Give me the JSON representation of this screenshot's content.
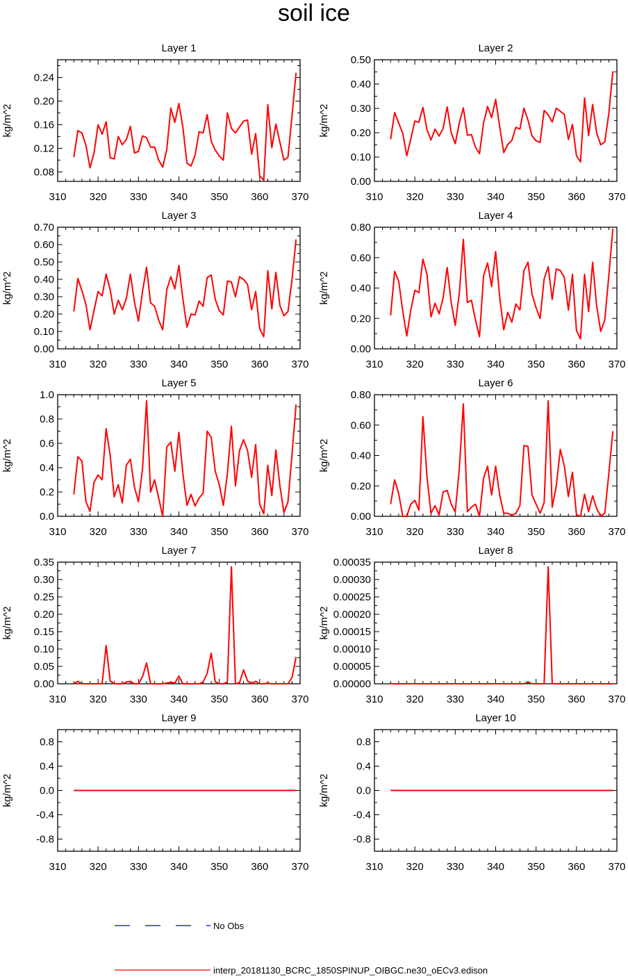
{
  "figure": {
    "title": "soil ice",
    "legend": [
      {
        "label": "No Obs",
        "color": "#0000ff",
        "style": "dashed"
      },
      {
        "label": "interp_20181130_BCRC_1850SPINUP_OIBGC.ne30_oECv3.edison",
        "color": "#ff0000",
        "style": "solid"
      }
    ]
  },
  "chart_data": [
    {
      "type": "line",
      "title": "Layer 1",
      "ylabel": "kg/m^2",
      "xlim": [
        310,
        370
      ],
      "ylim": [
        0.064,
        0.27
      ],
      "xticks": [
        310,
        320,
        330,
        340,
        350,
        360,
        370
      ],
      "yticks": [
        0.08,
        0.12,
        0.16,
        0.2,
        0.24
      ],
      "ytick_labels": [
        "0.08",
        "0.12",
        "0.16",
        "0.20",
        "0.24"
      ],
      "x_start": 314,
      "series": [
        {
          "color": "#ff0000",
          "values": [
            0.105,
            0.15,
            0.146,
            0.125,
            0.087,
            0.112,
            0.16,
            0.144,
            0.165,
            0.104,
            0.102,
            0.14,
            0.126,
            0.135,
            0.157,
            0.112,
            0.115,
            0.141,
            0.138,
            0.122,
            0.122,
            0.1,
            0.088,
            0.118,
            0.188,
            0.164,
            0.196,
            0.155,
            0.095,
            0.09,
            0.108,
            0.148,
            0.146,
            0.177,
            0.132,
            0.117,
            0.107,
            0.1,
            0.18,
            0.154,
            0.146,
            0.156,
            0.166,
            0.168,
            0.11,
            0.145,
            0.073,
            0.066,
            0.194,
            0.121,
            0.161,
            0.13,
            0.1,
            0.105,
            0.175,
            0.248
          ]
        }
      ]
    },
    {
      "type": "line",
      "title": "Layer 2",
      "ylabel": "kg/m^2",
      "xlim": [
        310,
        370
      ],
      "ylim": [
        0,
        0.5
      ],
      "xticks": [
        310,
        320,
        330,
        340,
        350,
        360,
        370
      ],
      "yticks": [
        0,
        0.1,
        0.2,
        0.3,
        0.4,
        0.5
      ],
      "ytick_labels": [
        "0.00",
        "0.10",
        "0.20",
        "0.30",
        "0.40",
        "0.50"
      ],
      "x_start": 314,
      "series": [
        {
          "color": "#ff0000",
          "values": [
            0.173,
            0.283,
            0.24,
            0.198,
            0.105,
            0.174,
            0.248,
            0.243,
            0.304,
            0.212,
            0.17,
            0.215,
            0.186,
            0.218,
            0.306,
            0.2,
            0.155,
            0.24,
            0.302,
            0.19,
            0.192,
            0.14,
            0.114,
            0.24,
            0.308,
            0.262,
            0.337,
            0.225,
            0.118,
            0.152,
            0.168,
            0.222,
            0.215,
            0.301,
            0.252,
            0.187,
            0.167,
            0.16,
            0.292,
            0.274,
            0.244,
            0.301,
            0.288,
            0.275,
            0.172,
            0.234,
            0.105,
            0.08,
            0.343,
            0.188,
            0.316,
            0.198,
            0.15,
            0.162,
            0.278,
            0.453
          ]
        }
      ]
    },
    {
      "type": "line",
      "title": "Layer 3",
      "ylabel": "kg/m^2",
      "xlim": [
        310,
        370
      ],
      "ylim": [
        0,
        0.7
      ],
      "xticks": [
        310,
        320,
        330,
        340,
        350,
        360,
        370
      ],
      "yticks": [
        0,
        0.1,
        0.2,
        0.3,
        0.4,
        0.5,
        0.6,
        0.7
      ],
      "ytick_labels": [
        "0.00",
        "0.10",
        "0.20",
        "0.30",
        "0.40",
        "0.50",
        "0.60",
        "0.70"
      ],
      "x_start": 314,
      "series": [
        {
          "color": "#ff0000",
          "values": [
            0.215,
            0.405,
            0.335,
            0.255,
            0.11,
            0.22,
            0.33,
            0.305,
            0.43,
            0.34,
            0.2,
            0.28,
            0.225,
            0.29,
            0.43,
            0.27,
            0.16,
            0.33,
            0.47,
            0.265,
            0.245,
            0.165,
            0.11,
            0.34,
            0.415,
            0.345,
            0.48,
            0.285,
            0.125,
            0.2,
            0.195,
            0.275,
            0.245,
            0.41,
            0.425,
            0.285,
            0.22,
            0.195,
            0.39,
            0.385,
            0.3,
            0.415,
            0.4,
            0.37,
            0.225,
            0.33,
            0.115,
            0.07,
            0.45,
            0.23,
            0.44,
            0.25,
            0.19,
            0.215,
            0.4,
            0.63
          ]
        }
      ]
    },
    {
      "type": "line",
      "title": "Layer 4",
      "ylabel": "kg/m^2",
      "xlim": [
        310,
        370
      ],
      "ylim": [
        0,
        0.8
      ],
      "xticks": [
        310,
        320,
        330,
        340,
        350,
        360,
        370
      ],
      "yticks": [
        0,
        0.2,
        0.4,
        0.6,
        0.8
      ],
      "ytick_labels": [
        "0.00",
        "0.20",
        "0.40",
        "0.60",
        "0.80"
      ],
      "x_start": 314,
      "series": [
        {
          "color": "#ff0000",
          "values": [
            0.22,
            0.51,
            0.445,
            0.25,
            0.085,
            0.255,
            0.385,
            0.37,
            0.59,
            0.49,
            0.21,
            0.3,
            0.23,
            0.335,
            0.535,
            0.305,
            0.155,
            0.365,
            0.72,
            0.305,
            0.32,
            0.19,
            0.08,
            0.48,
            0.565,
            0.41,
            0.64,
            0.34,
            0.125,
            0.24,
            0.175,
            0.295,
            0.255,
            0.515,
            0.57,
            0.36,
            0.27,
            0.2,
            0.46,
            0.54,
            0.325,
            0.525,
            0.515,
            0.47,
            0.255,
            0.49,
            0.12,
            0.065,
            0.49,
            0.245,
            0.57,
            0.28,
            0.115,
            0.19,
            0.48,
            0.79
          ]
        }
      ]
    },
    {
      "type": "line",
      "title": "Layer 5",
      "ylabel": "kg/m^2",
      "xlim": [
        310,
        370
      ],
      "ylim": [
        0,
        1.0
      ],
      "xticks": [
        310,
        320,
        330,
        340,
        350,
        360,
        370
      ],
      "yticks": [
        0,
        0.2,
        0.4,
        0.6,
        0.8,
        1.0
      ],
      "ytick_labels": [
        "0.0",
        "0.2",
        "0.4",
        "0.6",
        "0.8",
        "1.0"
      ],
      "x_start": 314,
      "series": [
        {
          "color": "#ff0000",
          "values": [
            0.18,
            0.49,
            0.455,
            0.12,
            0.04,
            0.28,
            0.34,
            0.3,
            0.72,
            0.5,
            0.16,
            0.26,
            0.11,
            0.42,
            0.47,
            0.24,
            0.12,
            0.39,
            0.95,
            0.2,
            0.3,
            0.15,
            0.0,
            0.57,
            0.61,
            0.37,
            0.69,
            0.35,
            0.09,
            0.18,
            0.085,
            0.15,
            0.19,
            0.7,
            0.65,
            0.37,
            0.26,
            0.09,
            0.35,
            0.74,
            0.25,
            0.54,
            0.63,
            0.54,
            0.32,
            0.59,
            0.1,
            0.02,
            0.42,
            0.17,
            0.545,
            0.25,
            0.03,
            0.12,
            0.51,
            0.92
          ]
        }
      ]
    },
    {
      "type": "line",
      "title": "Layer 6",
      "ylabel": "kg/m^2",
      "xlim": [
        310,
        370
      ],
      "ylim": [
        0,
        0.8
      ],
      "xticks": [
        310,
        320,
        330,
        340,
        350,
        360,
        370
      ],
      "yticks": [
        0,
        0.2,
        0.4,
        0.6,
        0.8
      ],
      "ytick_labels": [
        "0.00",
        "0.20",
        "0.40",
        "0.60",
        "0.80"
      ],
      "x_start": 314,
      "series": [
        {
          "color": "#ff0000",
          "values": [
            0.08,
            0.24,
            0.15,
            0.0,
            0.0,
            0.08,
            0.105,
            0.04,
            0.655,
            0.26,
            0.02,
            0.07,
            0.01,
            0.16,
            0.17,
            0.08,
            0.03,
            0.31,
            0.74,
            0.03,
            0.06,
            0.08,
            0.0,
            0.25,
            0.33,
            0.14,
            0.33,
            0.14,
            0.02,
            0.02,
            0.005,
            0.02,
            0.07,
            0.465,
            0.46,
            0.14,
            0.08,
            0.02,
            0.09,
            0.76,
            0.06,
            0.2,
            0.44,
            0.33,
            0.13,
            0.29,
            0.01,
            0.0,
            0.145,
            0.03,
            0.135,
            0.05,
            0.0,
            0.02,
            0.28,
            0.56
          ]
        }
      ]
    },
    {
      "type": "line",
      "title": "Layer 7",
      "ylabel": "kg/m^2",
      "xlim": [
        310,
        370
      ],
      "ylim": [
        0,
        0.35
      ],
      "xticks": [
        310,
        320,
        330,
        340,
        350,
        360,
        370
      ],
      "yticks": [
        0,
        0.05,
        0.1,
        0.15,
        0.2,
        0.25,
        0.3,
        0.35
      ],
      "ytick_labels": [
        "0.00",
        "0.05",
        "0.10",
        "0.15",
        "0.20",
        "0.25",
        "0.30",
        "0.35"
      ],
      "x_start": 314,
      "series": [
        {
          "color": "#ff0000",
          "values": [
            0,
            0.007,
            0,
            0,
            0,
            0,
            0,
            0,
            0.11,
            0.008,
            0,
            0,
            0,
            0.005,
            0.007,
            0,
            0,
            0.02,
            0.06,
            0,
            0,
            0,
            0,
            0.002,
            0.004,
            0.002,
            0.022,
            0,
            0,
            0,
            0,
            0,
            0.005,
            0.03,
            0.088,
            0.006,
            0,
            0,
            0.005,
            0.337,
            0,
            0.003,
            0.04,
            0.008,
            0,
            0.007,
            0,
            0,
            0.002,
            0,
            0,
            0,
            0,
            0,
            0.018,
            0.077
          ]
        }
      ]
    },
    {
      "type": "line",
      "title": "Layer 8",
      "ylabel": "kg/m^2",
      "xlim": [
        310,
        370
      ],
      "ylim": [
        0,
        0.00035
      ],
      "xticks": [
        310,
        320,
        330,
        340,
        350,
        360,
        370
      ],
      "yticks": [
        0,
        5e-05,
        0.0001,
        0.00015,
        0.0002,
        0.00025,
        0.0003,
        0.00035
      ],
      "ytick_labels": [
        "0.00000",
        "0.00005",
        "0.00010",
        "0.00015",
        "0.00020",
        "0.00025",
        "0.00030",
        "0.00035"
      ],
      "x_start": 314,
      "series": [
        {
          "color": "#ff0000",
          "values": [
            0,
            0,
            0,
            0,
            0,
            0,
            0,
            0,
            0,
            0,
            0,
            0,
            0,
            0,
            0,
            0,
            0,
            0,
            0,
            0,
            0,
            0,
            0,
            0,
            0,
            0,
            0,
            0,
            0,
            0,
            0,
            0,
            0,
            0,
            5e-06,
            0,
            0,
            0,
            0,
            0.000337,
            0,
            0,
            0,
            0,
            0,
            0,
            0,
            0,
            0,
            0,
            0,
            0,
            0,
            0,
            0,
            0
          ]
        }
      ]
    },
    {
      "type": "line",
      "title": "Layer 9",
      "ylabel": "kg/m^2",
      "xlim": [
        310,
        370
      ],
      "ylim": [
        -1.0,
        1.0
      ],
      "xticks": [
        310,
        320,
        330,
        340,
        350,
        360,
        370
      ],
      "yticks": [
        -0.8,
        -0.4,
        0,
        0.4,
        0.8
      ],
      "ytick_labels": [
        "-0.8",
        "-0.4",
        "0.0",
        "0.4",
        "0.8"
      ],
      "x_start": 314,
      "series": [
        {
          "color": "#ff0000",
          "values": [
            0,
            0,
            0,
            0,
            0,
            0,
            0,
            0,
            0,
            0,
            0,
            0,
            0,
            0,
            0,
            0,
            0,
            0,
            0,
            0,
            0,
            0,
            0,
            0,
            0,
            0,
            0,
            0,
            0,
            0,
            0,
            0,
            0,
            0,
            0,
            0,
            0,
            0,
            0,
            0,
            0,
            0,
            0,
            0,
            0,
            0,
            0,
            0,
            0,
            0,
            0,
            0,
            0,
            0,
            0,
            0
          ]
        }
      ]
    },
    {
      "type": "line",
      "title": "Layer 10",
      "ylabel": "kg/m^2",
      "xlim": [
        310,
        370
      ],
      "ylim": [
        -1.0,
        1.0
      ],
      "xticks": [
        310,
        320,
        330,
        340,
        350,
        360,
        370
      ],
      "yticks": [
        -0.8,
        -0.4,
        0,
        0.4,
        0.8
      ],
      "ytick_labels": [
        "-0.8",
        "-0.4",
        "0.0",
        "0.4",
        "0.8"
      ],
      "x_start": 314,
      "series": [
        {
          "color": "#ff0000",
          "values": [
            0,
            0,
            0,
            0,
            0,
            0,
            0,
            0,
            0,
            0,
            0,
            0,
            0,
            0,
            0,
            0,
            0,
            0,
            0,
            0,
            0,
            0,
            0,
            0,
            0,
            0,
            0,
            0,
            0,
            0,
            0,
            0,
            0,
            0,
            0,
            0,
            0,
            0,
            0,
            0,
            0,
            0,
            0,
            0,
            0,
            0,
            0,
            0,
            0,
            0,
            0,
            0,
            0,
            0,
            0,
            0
          ]
        }
      ]
    }
  ]
}
